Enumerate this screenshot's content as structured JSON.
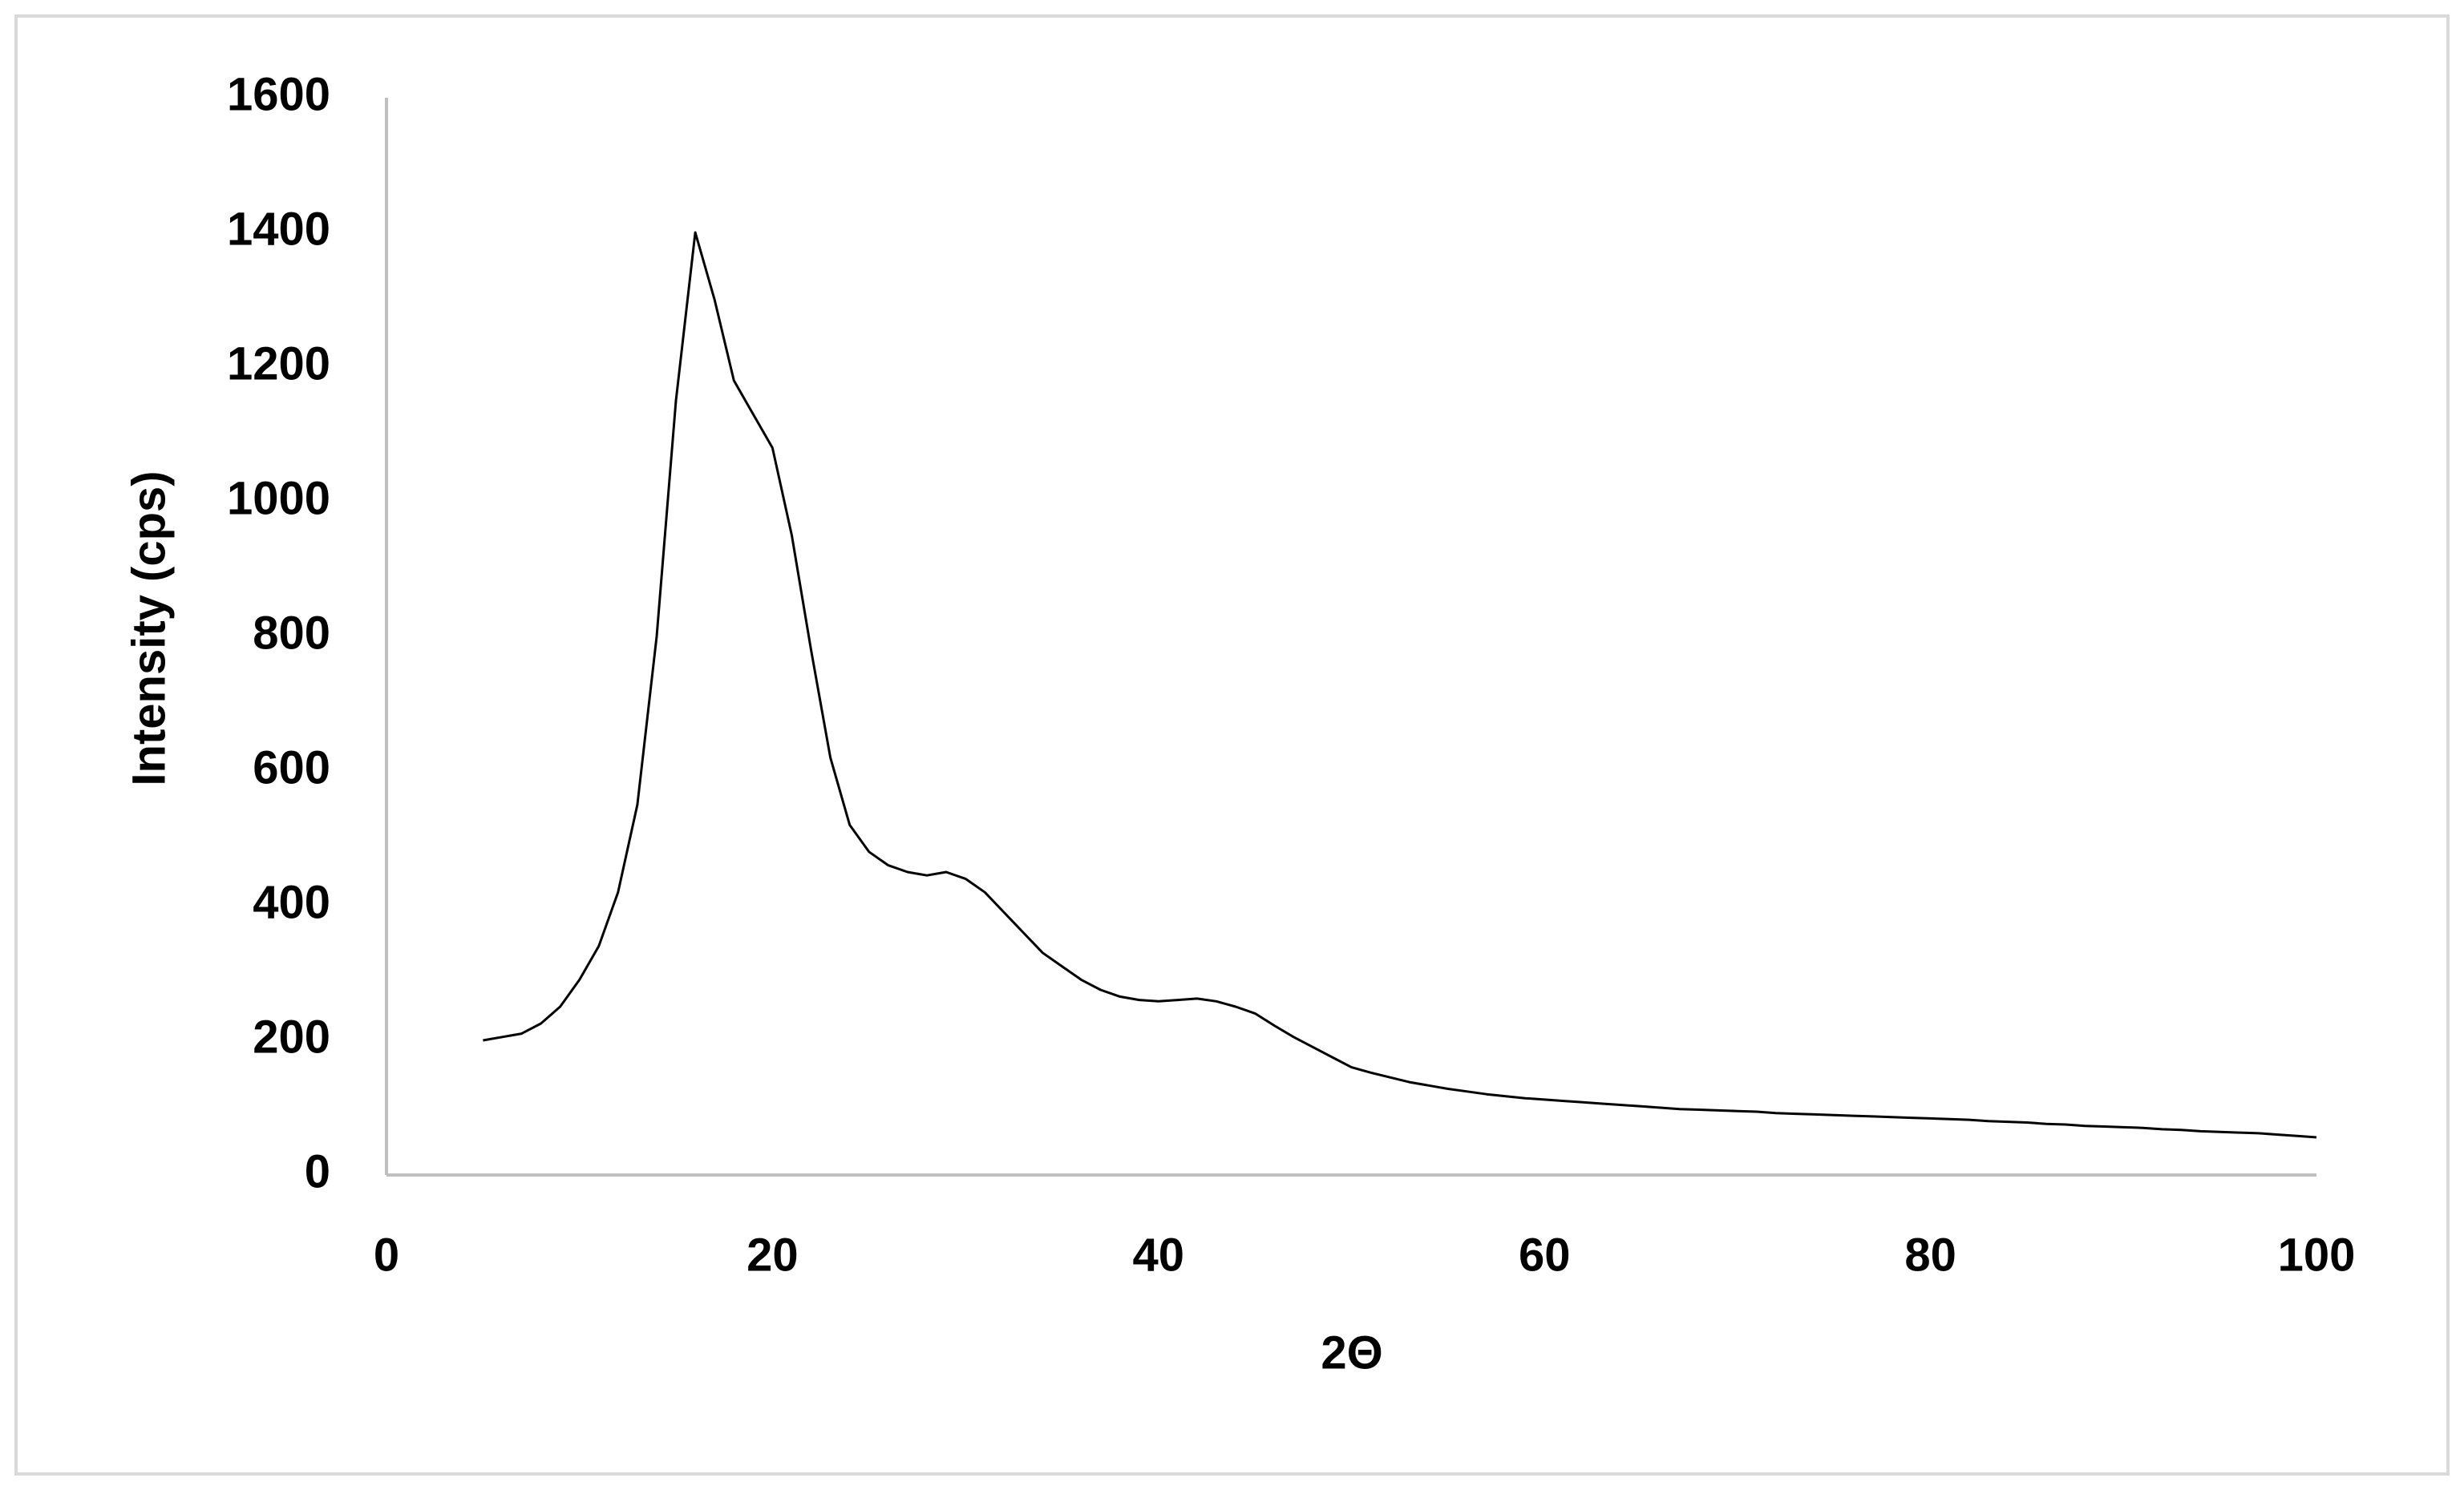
{
  "chart_data": {
    "type": "line",
    "x_label": "2Θ",
    "y_label": "Intensity (cps)",
    "x": [
      5,
      6,
      7,
      8,
      9,
      10,
      11,
      12,
      13,
      14,
      15,
      16,
      17,
      18,
      19,
      20,
      21,
      22,
      23,
      24,
      25,
      26,
      27,
      28,
      29,
      30,
      31,
      32,
      33,
      34,
      35,
      36,
      37,
      38,
      39,
      40,
      41,
      42,
      43,
      44,
      45,
      46,
      47,
      48,
      49,
      50,
      51,
      52,
      53,
      54,
      55,
      56,
      57,
      58,
      59,
      60,
      61,
      62,
      63,
      64,
      65,
      66,
      67,
      68,
      69,
      70,
      71,
      72,
      73,
      74,
      75,
      76,
      77,
      78,
      79,
      80,
      81,
      82,
      83,
      84,
      85,
      86,
      87,
      88,
      89,
      90,
      91,
      92,
      93,
      94,
      95,
      96,
      97,
      98,
      99,
      100
    ],
    "values": [
      200,
      205,
      210,
      225,
      250,
      290,
      340,
      420,
      550,
      800,
      1150,
      1400,
      1300,
      1180,
      1130,
      1080,
      950,
      780,
      620,
      520,
      480,
      460,
      450,
      445,
      450,
      440,
      420,
      390,
      360,
      330,
      310,
      290,
      275,
      265,
      260,
      258,
      260,
      262,
      258,
      250,
      240,
      222,
      205,
      190,
      175,
      160,
      152,
      145,
      138,
      133,
      128,
      124,
      120,
      117,
      114,
      112,
      110,
      108,
      106,
      104,
      102,
      100,
      98,
      97,
      96,
      95,
      94,
      92,
      91,
      90,
      89,
      88,
      87,
      86,
      85,
      84,
      83,
      82,
      80,
      79,
      78,
      76,
      75,
      73,
      72,
      71,
      70,
      68,
      67,
      65,
      64,
      63,
      62,
      60,
      58,
      56
    ],
    "color": "#000000",
    "xlim": [
      0,
      100
    ],
    "xticks": [
      0,
      20,
      40,
      60,
      80,
      100
    ],
    "ylim": [
      0,
      1600
    ],
    "yticks": [
      0,
      200,
      400,
      600,
      800,
      1000,
      1200,
      1400,
      1600
    ],
    "grid": false
  }
}
